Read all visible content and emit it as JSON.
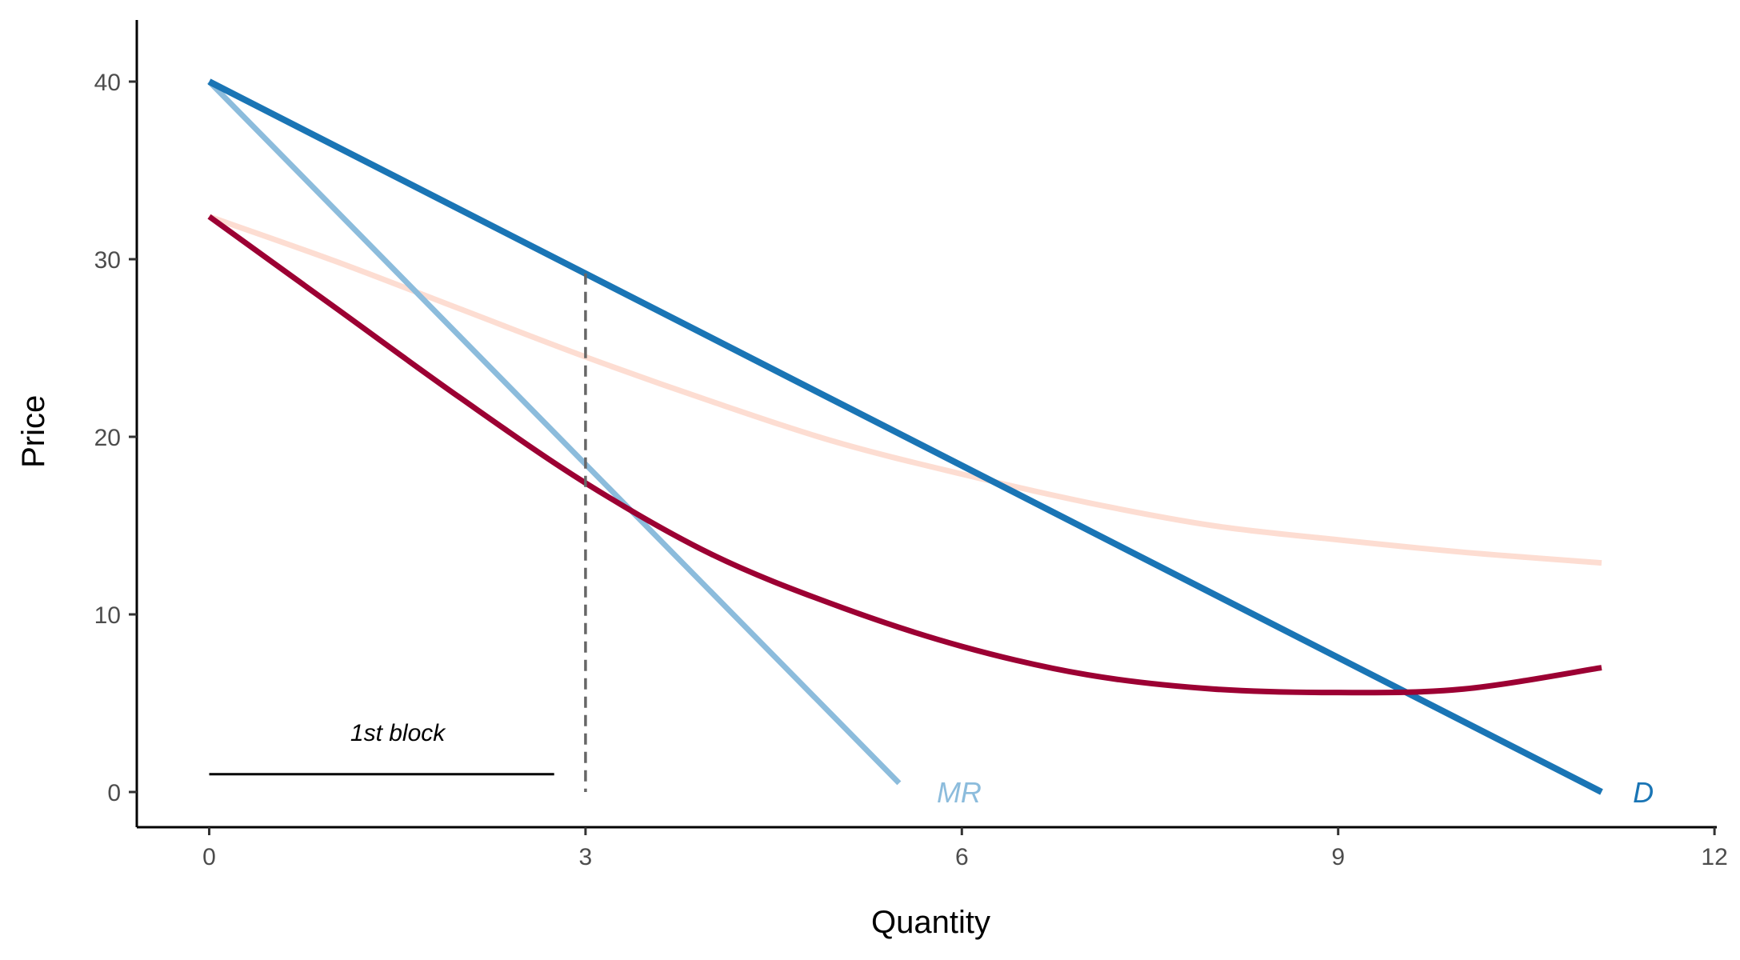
{
  "chart_data": {
    "type": "line",
    "title": "",
    "xlabel": "Quantity",
    "ylabel": "Price",
    "xlim": [
      -0.5,
      12
    ],
    "ylim": [
      -2,
      43
    ],
    "xticks": [
      0,
      3,
      6,
      9,
      12
    ],
    "yticks": [
      0,
      10,
      20,
      30,
      40
    ],
    "grid": false,
    "legend": "none",
    "series": [
      {
        "name": "D",
        "color": "#1a75b5",
        "x": [
          0,
          11.1
        ],
        "y": [
          40,
          0
        ]
      },
      {
        "name": "MR",
        "color": "#8cbcdc",
        "x": [
          0,
          5.5
        ],
        "y": [
          40,
          0.5
        ]
      },
      {
        "color": "#fdddd2",
        "x": [
          0,
          1,
          2,
          3,
          4,
          5,
          6,
          7,
          8,
          9,
          10,
          11.1
        ],
        "y": [
          32.4,
          29.9,
          27.2,
          24.5,
          22.0,
          19.7,
          17.9,
          16.3,
          15.0,
          14.2,
          13.5,
          12.9
        ]
      },
      {
        "color": "#9c0033",
        "x": [
          0,
          1,
          2,
          3,
          4,
          5,
          6,
          7,
          8,
          9,
          10,
          11.1
        ],
        "y": [
          32.4,
          27.3,
          22.2,
          17.4,
          13.4,
          10.5,
          8.2,
          6.6,
          5.8,
          5.6,
          5.8,
          7.0
        ]
      }
    ],
    "annotations": {
      "vline": {
        "x": 3,
        "y_top": 29.2,
        "style": "dashed",
        "color": "#666666"
      },
      "block_segment": {
        "x": [
          0,
          2.75
        ],
        "y": 1,
        "label": "1st block"
      },
      "labels": [
        {
          "text": "MR",
          "x": 5.8,
          "y": 0,
          "color": "#8cbcdc"
        },
        {
          "text": "D",
          "x": 11.35,
          "y": 0,
          "color": "#1a75b5"
        }
      ]
    }
  }
}
